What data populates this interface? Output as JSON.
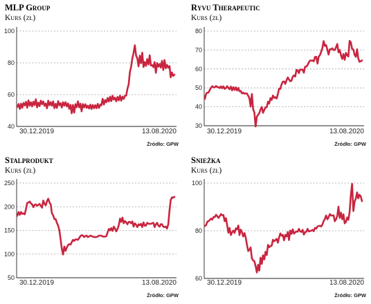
{
  "colors": {
    "series": "#c8253f",
    "axis": "#231f20",
    "grid": "#9d9d9d"
  },
  "chart_data": [
    {
      "type": "line",
      "title": "MLP Group",
      "subtitle": "Kurs (zł)",
      "yticks": [
        40,
        60,
        80,
        100
      ],
      "ylim": [
        40,
        100
      ],
      "x_start_label": "30.12.2019",
      "x_end_label": "13.08.2020",
      "source": "Źródło: GPW",
      "grid": true,
      "series": [
        {
          "values": [
            52.2,
            54.1,
            51.0,
            54.3,
            51.7,
            54.8,
            53.2,
            55.5,
            51.8,
            56.4,
            53.0,
            55.2,
            52.6,
            55.6,
            53.4,
            57.1,
            52.0,
            55.0,
            52.8,
            56.2,
            54.0,
            55.7,
            52.9,
            54.5,
            51.4,
            56.2,
            53.3,
            55.3,
            53.0,
            55.8,
            51.5,
            54.2,
            51.6,
            55.9,
            53.3,
            54.6,
            51.9,
            55.2,
            53.1,
            55.3,
            52.6,
            54.5,
            51.1,
            53.6,
            48.3,
            53.5,
            48.7,
            54.0,
            52.1,
            55.8,
            52.0,
            54.3,
            49.5,
            54.1,
            52.0,
            54.0,
            51.7,
            53.1,
            51.3,
            53.7,
            51.0,
            53.5,
            51.5,
            53.4,
            51.5,
            54.2,
            51.6,
            53.8,
            53.3,
            57.4,
            53.8,
            56.6,
            55.2,
            57.9,
            55.7,
            58.7,
            55.9,
            59.3,
            56.9,
            58.1,
            55.8,
            58.6,
            56.4,
            59.4,
            56.2,
            58.7,
            57.3,
            59.4,
            59.4,
            63.6,
            66.6,
            74.3,
            77.4,
            82.8,
            86.3,
            91.1,
            84.6,
            82.9,
            77.8,
            84.5,
            79.8,
            86.4,
            77.4,
            80.5,
            78.1,
            82.4,
            79.0,
            84.8,
            78.4,
            78.6,
            77.3,
            80.5,
            73.8,
            79.9,
            77.6,
            79.3,
            77.0,
            81.3,
            75.5,
            81.8,
            76.6,
            78.7,
            76.9,
            78.0,
            70.9,
            74.0,
            71.8,
            72.6
          ]
        }
      ]
    },
    {
      "type": "line",
      "title": "Ryvu Therapeutic",
      "subtitle": "Kurs (zł)",
      "yticks": [
        30,
        40,
        50,
        60,
        70,
        80
      ],
      "ylim": [
        30,
        80
      ],
      "x_start_label": "30.12.2019",
      "x_end_label": "13.08.2020",
      "source": "Źródło: GPW",
      "grid": true,
      "series": [
        {
          "values": [
            44.2,
            46.9,
            47.5,
            47.6,
            48.9,
            50.1,
            50.9,
            50.3,
            50.3,
            51.0,
            50.4,
            50.4,
            49.9,
            50.8,
            49.8,
            50.8,
            49.5,
            49.9,
            50.9,
            50.0,
            49.3,
            50.7,
            48.7,
            50.4,
            48.9,
            50.3,
            48.6,
            50.0,
            48.2,
            48.4,
            47.1,
            47.5,
            46.9,
            47.1,
            47.0,
            45.8,
            44.6,
            40.1,
            46.8,
            38.8,
            37.0,
            29.6,
            34.8,
            35.8,
            36.6,
            38.7,
            39.9,
            36.8,
            38.4,
            39.7,
            39.8,
            42.7,
            41.7,
            44.6,
            43.6,
            46.0,
            44.7,
            45.1,
            44.4,
            46.8,
            49.6,
            49.4,
            51.9,
            53.3,
            53.4,
            52.1,
            54.1,
            55.5,
            54.5,
            53.5,
            53.8,
            55.9,
            56.6,
            56.0,
            59.5,
            59.2,
            57.8,
            59.7,
            59.6,
            59.7,
            58.0,
            61.2,
            61.2,
            62.1,
            63.4,
            64.4,
            64.4,
            64.5,
            64.0,
            66.4,
            66.4,
            62.8,
            66.5,
            67.3,
            69.0,
            71.1,
            74.7,
            72.2,
            72.6,
            70.1,
            67.6,
            70.4,
            70.3,
            70.9,
            70.0,
            70.0,
            71.5,
            73.2,
            68.8,
            70.0,
            67.3,
            65.3,
            67.9,
            64.8,
            68.5,
            67.2,
            66.6,
            74.8,
            74.1,
            70.6,
            70.3,
            67.5,
            66.4,
            70.4,
            65.6,
            63.8,
            64.1,
            64.5
          ]
        }
      ]
    },
    {
      "type": "line",
      "title": "Stalprodukt",
      "subtitle": "Kurs (zł)",
      "yticks": [
        50,
        100,
        150,
        200,
        250
      ],
      "ylim": [
        50,
        250
      ],
      "x_start_label": "30.12.2019",
      "x_end_label": "13.08.2020",
      "source": "Źródło: GPW",
      "grid": true,
      "series": [
        {
          "values": [
            181,
            189,
            183,
            189,
            185,
            186,
            184,
            195,
            208,
            209,
            211,
            207,
            205,
            199,
            204,
            205,
            202,
            204,
            206,
            202,
            198,
            213,
            206,
            203,
            212,
            217,
            209,
            205,
            186,
            182,
            174,
            174,
            166,
            160,
            150,
            131,
            111,
            99,
            116,
            107,
            114,
            119,
            121,
            120,
            125,
            130,
            128,
            131,
            131,
            130,
            134,
            138,
            140,
            139,
            136,
            138,
            139,
            136,
            137,
            139,
            138,
            137,
            136,
            136,
            136,
            137,
            139,
            139,
            139,
            137,
            137,
            137,
            138,
            146,
            153,
            150,
            155,
            149,
            158,
            154,
            148,
            153,
            161,
            175,
            168,
            177,
            165,
            170,
            167,
            163,
            168,
            168,
            165,
            169,
            158,
            165,
            162,
            157,
            163,
            161,
            164,
            157,
            167,
            160,
            160,
            166,
            164,
            164,
            164,
            165,
            166,
            157,
            163,
            166,
            160,
            158,
            163,
            163,
            158,
            157,
            158,
            154,
            163,
            192,
            214,
            220,
            219,
            221
          ]
        }
      ]
    },
    {
      "type": "line",
      "title": "Sniežka",
      "subtitle": "Kurs (zł)",
      "yticks": [
        60,
        80,
        100
      ],
      "ylim": [
        60,
        100
      ],
      "x_start_label": "30.12.2019",
      "x_end_label": "13.08.2020",
      "source": "Źródło: GPW",
      "grid": true,
      "series": [
        {
          "values": [
            82.0,
            82.4,
            83.8,
            84.1,
            84.5,
            85.1,
            84.7,
            85.8,
            85.7,
            86.7,
            86.1,
            85.4,
            86.1,
            87.0,
            86.5,
            86.6,
            84.0,
            85.3,
            82.3,
            79.2,
            81.2,
            78.2,
            79.4,
            80.1,
            79.1,
            81.0,
            80.6,
            82.2,
            78.2,
            80.5,
            79.4,
            77.6,
            79.0,
            77.2,
            74.1,
            71.5,
            72.0,
            73.0,
            68.4,
            67.6,
            67.2,
            65.2,
            62.5,
            65.7,
            63.3,
            68.7,
            66.1,
            69.7,
            68.0,
            71.2,
            69.8,
            74.1,
            73.1,
            73.6,
            73.7,
            76.2,
            75.6,
            76.1,
            76.6,
            75.0,
            77.2,
            78.9,
            77.9,
            78.3,
            76.0,
            78.3,
            77.6,
            79.5,
            76.1,
            80.1,
            78.7,
            80.6,
            78.8,
            79.3,
            79.7,
            79.6,
            80.8,
            79.8,
            79.5,
            80.4,
            78.4,
            79.4,
            79.6,
            80.8,
            79.7,
            79.9,
            80.0,
            80.4,
            79.8,
            81.2,
            80.9,
            81.8,
            82.0,
            82.1,
            81.8,
            82.6,
            84.1,
            85.0,
            86.4,
            84.8,
            85.6,
            87.0,
            86.4,
            86.4,
            86.5,
            84.0,
            84.8,
            86.3,
            90.1,
            85.4,
            87.6,
            84.8,
            86.9,
            83.1,
            83.7,
            85.6,
            84.6,
            87.9,
            95.1,
            99.7,
            88.3,
            92.2,
            93.5,
            96.1,
            93.6,
            95.1,
            94.4,
            92.4
          ]
        }
      ]
    }
  ]
}
